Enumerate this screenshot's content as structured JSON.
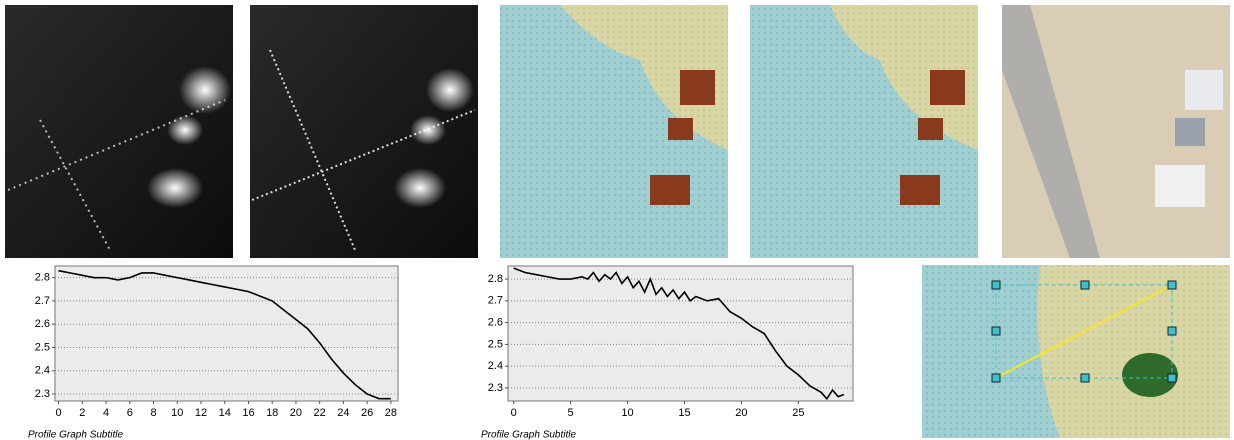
{
  "chart_data": [
    {
      "type": "line",
      "subtitle": "Profile Graph Subtitle",
      "x": [
        0,
        1,
        2,
        3,
        4,
        5,
        6,
        7,
        8,
        9,
        10,
        11,
        12,
        13,
        14,
        15,
        16,
        17,
        18,
        19,
        20,
        21,
        22,
        23,
        24,
        25,
        26,
        27,
        28
      ],
      "series": [
        {
          "color": "#000000",
          "values": [
            2.83,
            2.82,
            2.81,
            2.8,
            2.8,
            2.79,
            2.8,
            2.82,
            2.82,
            2.81,
            2.8,
            2.79,
            2.78,
            2.77,
            2.76,
            2.75,
            2.74,
            2.72,
            2.7,
            2.66,
            2.62,
            2.58,
            2.52,
            2.45,
            2.39,
            2.34,
            2.3,
            2.28,
            2.28
          ]
        }
      ],
      "xlim": [
        -0.3,
        28.6
      ],
      "ylim": [
        2.27,
        2.85
      ],
      "xticks": [
        0,
        2,
        4,
        6,
        8,
        10,
        12,
        14,
        16,
        18,
        20,
        22,
        24,
        26,
        28
      ],
      "yticks": [
        2.3,
        2.4,
        2.5,
        2.6,
        2.7,
        2.8
      ],
      "grid": true
    },
    {
      "type": "line",
      "subtitle": "Profile Graph Subtitle",
      "x": [
        0,
        1,
        2,
        3,
        4,
        5,
        6,
        6.5,
        7,
        7.5,
        8,
        8.5,
        9,
        9.5,
        10,
        10.5,
        11,
        11.5,
        12,
        12.5,
        13,
        13.5,
        14,
        14.5,
        15,
        15.5,
        16,
        17,
        18,
        19,
        20,
        21,
        22,
        23,
        24,
        25,
        26,
        27,
        27.5,
        28,
        28.5,
        29
      ],
      "series": [
        {
          "color": "#000000",
          "values": [
            2.85,
            2.83,
            2.82,
            2.81,
            2.8,
            2.8,
            2.81,
            2.8,
            2.83,
            2.79,
            2.82,
            2.8,
            2.83,
            2.78,
            2.81,
            2.76,
            2.79,
            2.74,
            2.8,
            2.73,
            2.76,
            2.72,
            2.75,
            2.71,
            2.74,
            2.7,
            2.72,
            2.7,
            2.71,
            2.65,
            2.62,
            2.58,
            2.55,
            2.47,
            2.4,
            2.36,
            2.31,
            2.28,
            2.25,
            2.29,
            2.26,
            2.27
          ]
        }
      ],
      "xlim": [
        -0.5,
        29.8
      ],
      "ylim": [
        2.24,
        2.86
      ],
      "xticks": [
        0,
        5,
        10,
        15,
        20,
        25
      ],
      "yticks": [
        2.3,
        2.4,
        2.5,
        2.6,
        2.7,
        2.8
      ],
      "grid": true
    }
  ]
}
